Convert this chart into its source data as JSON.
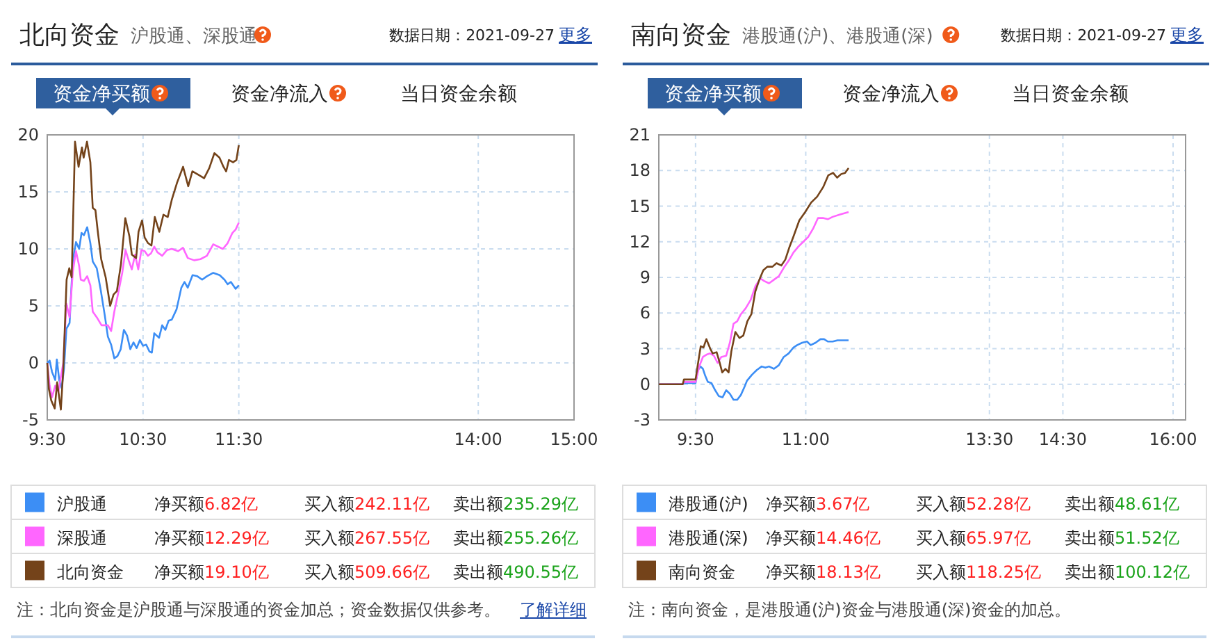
{
  "chart_data": [
    {
      "type": "line",
      "title": "北向资金",
      "subtitle": "沪股通、深股通",
      "xlim": [
        9.5,
        15
      ],
      "ylim": [
        -5,
        20
      ],
      "xticks": [
        {
          "value": 9.5,
          "label": "9:30"
        },
        {
          "value": 10.5,
          "label": "10:30"
        },
        {
          "value": 11.5,
          "label": "11:30"
        },
        {
          "value": 14,
          "label": "14:00"
        },
        {
          "value": 15,
          "label": "15:00"
        }
      ],
      "yticks": [
        -5,
        0,
        5,
        10,
        15,
        20
      ],
      "grid": true,
      "legend": "bottom",
      "series": [
        {
          "name": "沪股通",
          "color": "#3c8ef5",
          "x": [
            9.5,
            9.525,
            9.55,
            9.583,
            9.6,
            9.625,
            9.65,
            9.675,
            9.7,
            9.733,
            9.767,
            9.8,
            9.833,
            9.858,
            9.883,
            9.917,
            9.95,
            9.975,
            10.017,
            10.058,
            10.1,
            10.133,
            10.167,
            10.2,
            10.233,
            10.267,
            10.3,
            10.333,
            10.367,
            10.4,
            10.433,
            10.467,
            10.5,
            10.533,
            10.567,
            10.592,
            10.617,
            10.667,
            10.7,
            10.733,
            10.767,
            10.8,
            10.85,
            10.9,
            10.933,
            10.967,
            11.017,
            11.067,
            11.117,
            11.167,
            11.233,
            11.3,
            11.35,
            11.383,
            11.417,
            11.467,
            11.5
          ],
          "values": [
            0,
            0.2,
            -0.8,
            -1.5,
            0.3,
            -1.5,
            -2.2,
            -0.5,
            3,
            3.5,
            9,
            10.6,
            10,
            11.4,
            11.2,
            11.9,
            10.5,
            8.9,
            8.3,
            6.4,
            4.2,
            2.3,
            1.6,
            0.4,
            0.6,
            1.2,
            2.9,
            2.4,
            1.2,
            1.8,
            1.3,
            2,
            1.5,
            1.6,
            1,
            0.9,
            2.6,
            2.2,
            3.3,
            2.9,
            3.7,
            3.8,
            4.7,
            6.6,
            7.1,
            6.6,
            7.7,
            7.6,
            7.3,
            7.6,
            7.9,
            7.7,
            7.3,
            6.9,
            7.1,
            6.5,
            6.8
          ]
        },
        {
          "name": "深股通",
          "color": "#ff66ff",
          "x": [
            9.5,
            9.525,
            9.55,
            9.583,
            9.617,
            9.667,
            9.7,
            9.733,
            9.767,
            9.8,
            9.833,
            9.85,
            9.883,
            9.917,
            9.95,
            9.975,
            10.017,
            10.067,
            10.133,
            10.167,
            10.2,
            10.233,
            10.283,
            10.317,
            10.35,
            10.383,
            10.417,
            10.45,
            10.483,
            10.517,
            10.55,
            10.583,
            10.617,
            10.65,
            10.7,
            10.75,
            10.8,
            10.867,
            10.917,
            10.967,
            11.033,
            11.1,
            11.167,
            11.233,
            11.283,
            11.333,
            11.383,
            11.433,
            11.467,
            11.5
          ],
          "values": [
            0,
            -2,
            -3,
            -2,
            -2.5,
            0,
            5.2,
            4,
            8,
            9.8,
            8.5,
            7.3,
            7.2,
            7.6,
            6.8,
            4.5,
            4,
            3.3,
            3.3,
            2.8,
            4.5,
            5.8,
            7.9,
            9.9,
            9,
            8.2,
            9.5,
            8.2,
            9.9,
            9.8,
            9.4,
            9.6,
            10.2,
            9.7,
            9.4,
            9.9,
            10,
            9.8,
            10.1,
            9.2,
            9,
            9.1,
            9.4,
            10.4,
            10.2,
            10,
            10.5,
            11.4,
            11.7,
            12.3
          ]
        },
        {
          "name": "北向资金",
          "color": "#74431a",
          "x": [
            9.5,
            9.517,
            9.542,
            9.578,
            9.603,
            9.642,
            9.667,
            9.702,
            9.73,
            9.755,
            9.79,
            9.827,
            9.862,
            9.88,
            9.915,
            9.95,
            9.975,
            10.003,
            10.028,
            10.063,
            10.11,
            10.157,
            10.192,
            10.227,
            10.27,
            10.315,
            10.358,
            10.383,
            10.428,
            10.453,
            10.49,
            10.517,
            10.553,
            10.588,
            10.623,
            10.67,
            10.713,
            10.758,
            10.8,
            10.855,
            10.918,
            10.972,
            11.015,
            11.078,
            11.138,
            11.192,
            11.245,
            11.298,
            11.34,
            11.368,
            11.397,
            11.44,
            11.475,
            11.5
          ],
          "values": [
            0,
            -2.3,
            -3.3,
            -4,
            -1.7,
            -4.1,
            -0.6,
            7.3,
            8.3,
            7.5,
            19.4,
            17.2,
            18.9,
            18,
            19.4,
            17.6,
            13.6,
            13.4,
            11.5,
            9.1,
            7.5,
            5,
            6,
            6.3,
            8.7,
            12.7,
            11.1,
            9.5,
            9.2,
            11.5,
            12.5,
            11,
            10.5,
            10.3,
            12.8,
            11.5,
            13,
            12.8,
            14.3,
            15.8,
            17.2,
            15.5,
            16.8,
            16.5,
            16.2,
            17.1,
            18.4,
            18,
            17.2,
            16.8,
            17.8,
            17.6,
            17.8,
            19.1
          ]
        }
      ],
      "annotations": [
        "数据日期：2021-09-27",
        "更多",
        "资金净买额",
        "资金净流入",
        "当日资金余额",
        "净买额6.82亿",
        "买入额242.11亿",
        "卖出额235.29亿",
        "净买额12.29亿",
        "买入额267.55亿",
        "卖出额255.26亿",
        "净买额19.10亿",
        "买入额509.66亿",
        "卖出额490.55亿",
        "注：北向资金是沪股通与深股通的资金加总；资金数据仅供参考。",
        "了解详细"
      ]
    },
    {
      "type": "line",
      "title": "南向资金",
      "subtitle": "港股通(沪)、港股通(深)",
      "xlim": [
        9,
        16.17
      ],
      "ylim": [
        -3,
        21
      ],
      "xticks": [
        {
          "value": 9.5,
          "label": "9:30"
        },
        {
          "value": 11,
          "label": "11:00"
        },
        {
          "value": 13.5,
          "label": "13:30"
        },
        {
          "value": 14.5,
          "label": "14:30"
        },
        {
          "value": 16,
          "label": "16:00"
        }
      ],
      "yticks": [
        -3,
        0,
        3,
        6,
        9,
        12,
        15,
        18,
        21
      ],
      "grid": true,
      "legend": "bottom",
      "series": [
        {
          "name": "港股通(沪)",
          "color": "#3c8ef5",
          "x": [
            9,
            9.325,
            9.342,
            9.5,
            9.533,
            9.567,
            9.6,
            9.633,
            9.667,
            9.717,
            9.767,
            9.817,
            9.867,
            9.917,
            9.967,
            10.017,
            10.067,
            10.117,
            10.167,
            10.2,
            10.267,
            10.333,
            10.4,
            10.45,
            10.5,
            10.567,
            10.633,
            10.7,
            10.767,
            10.833,
            10.883,
            10.95,
            11.017,
            11.067,
            11.133,
            11.2,
            11.25,
            11.3,
            11.367,
            11.433,
            11.583
          ],
          "values": [
            0,
            0,
            0.1,
            0.1,
            1.2,
            1.5,
            1.3,
            0.7,
            0.2,
            0.1,
            -0.5,
            -1,
            -1.1,
            -0.5,
            -0.8,
            -1.3,
            -1.3,
            -0.9,
            -0.2,
            0.3,
            0.8,
            1.2,
            1.5,
            1.4,
            1.5,
            1.3,
            1.6,
            2.3,
            2.6,
            3.1,
            3.3,
            3.5,
            3.6,
            3.3,
            3.5,
            3.8,
            3.8,
            3.6,
            3.6,
            3.7,
            3.7
          ]
        },
        {
          "name": "港股通(深)",
          "color": "#ff66ff",
          "x": [
            9,
            9.325,
            9.342,
            9.5,
            9.55,
            9.6,
            9.65,
            9.7,
            9.75,
            9.8,
            9.85,
            9.917,
            9.967,
            10.017,
            10.067,
            10.117,
            10.183,
            10.25,
            10.317,
            10.383,
            10.433,
            10.5,
            10.567,
            10.633,
            10.7,
            10.767,
            10.833,
            10.9,
            10.967,
            11.033,
            11.1,
            11.167,
            11.233,
            11.3,
            11.367,
            11.467,
            11.583
          ],
          "values": [
            0,
            0,
            0.2,
            0.2,
            1.5,
            2.3,
            2.5,
            2.6,
            2.4,
            1.8,
            2.3,
            2.4,
            3.5,
            5.1,
            5.3,
            5.9,
            6.4,
            7.1,
            8.3,
            8.9,
            8.7,
            8.5,
            8.8,
            9.1,
            9.8,
            10.4,
            11.1,
            11.6,
            12,
            12.4,
            13.1,
            14,
            14,
            13.9,
            14.1,
            14.3,
            14.5
          ]
        },
        {
          "name": "南向资金",
          "color": "#74431a",
          "x": [
            9,
            9.325,
            9.342,
            9.5,
            9.527,
            9.57,
            9.608,
            9.647,
            9.7,
            9.733,
            9.787,
            9.825,
            9.863,
            9.907,
            9.95,
            9.988,
            10.042,
            10.097,
            10.15,
            10.205,
            10.26,
            10.313,
            10.368,
            10.422,
            10.477,
            10.547,
            10.602,
            10.667,
            10.722,
            10.775,
            10.83,
            10.912,
            10.992,
            11.073,
            11.155,
            11.237,
            11.307,
            11.372,
            11.427,
            11.482,
            11.535,
            11.583
          ],
          "values": [
            0,
            0,
            0.4,
            0.4,
            1.5,
            3.2,
            3.1,
            3.8,
            3,
            2.6,
            2.7,
            1.9,
            1,
            1.3,
            1,
            2.8,
            4.4,
            3.9,
            4.1,
            5.3,
            5.9,
            7.8,
            8.8,
            9.6,
            9.9,
            9.9,
            10.2,
            10,
            10.5,
            11.5,
            12.4,
            13.8,
            14.5,
            15.3,
            15.8,
            16.6,
            17.6,
            17.8,
            17.4,
            17.7,
            17.8,
            18.2
          ]
        }
      ],
      "annotations": [
        "数据日期：2021-09-27",
        "更多",
        "资金净买额",
        "资金净流入",
        "当日资金余额",
        "净买额3.67亿",
        "买入额52.28亿",
        "卖出额48.61亿",
        "净买额14.46亿",
        "买入额65.97亿",
        "卖出额51.52亿",
        "净买额18.13亿",
        "买入额118.25亿",
        "卖出额100.12亿",
        "注：南向资金，是港股通(沪)资金与港股通(深)资金的加总。"
      ]
    }
  ]
}
